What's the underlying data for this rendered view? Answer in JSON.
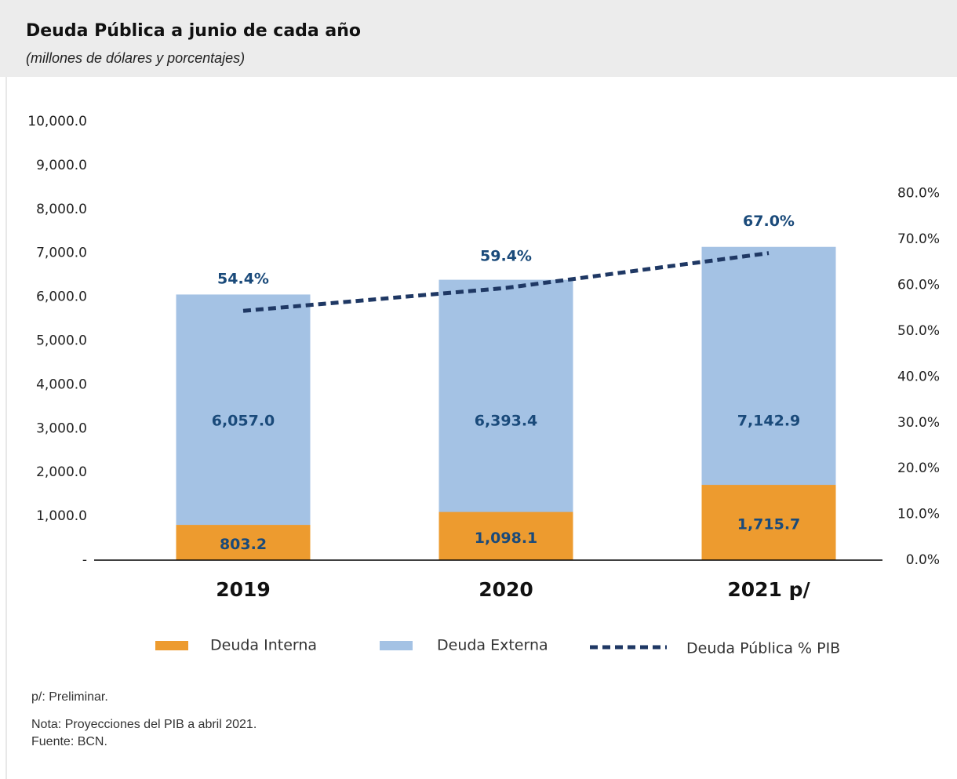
{
  "chart_data": {
    "type": "bar",
    "title": "Deuda Pública a junio de cada año",
    "subtitle": "(millones de dólares y porcentajes)",
    "categories": [
      "2019",
      "2020",
      "2021 p/"
    ],
    "series": [
      {
        "name": "Deuda Interna",
        "type": "bar",
        "color": "#ed9b2f",
        "values": [
          803.2,
          1098.1,
          1715.7
        ],
        "value_labels": [
          "803.2",
          "1,098.1",
          "1,715.7"
        ]
      },
      {
        "name": "Deuda Externa",
        "type": "bar",
        "color": "#a4c2e4",
        "values": [
          6057.0,
          6393.4,
          7142.9
        ],
        "value_labels": [
          "6,057.0",
          "6,393.4",
          "7,142.9"
        ]
      },
      {
        "name": "Deuda Pública % PIB",
        "type": "line",
        "axis": "y2",
        "color": "#1f3864",
        "values": [
          54.4,
          59.4,
          67.0
        ],
        "value_labels": [
          "54.4%",
          "59.4%",
          "67.0%"
        ]
      }
    ],
    "ylim": [
      0,
      10000
    ],
    "yticks": [
      {
        "value": 0,
        "label": "-"
      },
      {
        "value": 1000,
        "label": "1,000.0"
      },
      {
        "value": 2000,
        "label": "2,000.0"
      },
      {
        "value": 3000,
        "label": "3,000.0"
      },
      {
        "value": 4000,
        "label": "4,000.0"
      },
      {
        "value": 5000,
        "label": "5,000.0"
      },
      {
        "value": 6000,
        "label": "6,000.0"
      },
      {
        "value": 7000,
        "label": "7,000.0"
      },
      {
        "value": 8000,
        "label": "8,000.0"
      },
      {
        "value": 9000,
        "label": "9,000.0"
      },
      {
        "value": 10000,
        "label": "10,000.0"
      }
    ],
    "y2lim": [
      0,
      95.7
    ],
    "y2ticks": [
      {
        "value": 0,
        "label": "0.0%"
      },
      {
        "value": 10,
        "label": "10.0%"
      },
      {
        "value": 20,
        "label": "20.0%"
      },
      {
        "value": 30,
        "label": "30.0%"
      },
      {
        "value": 40,
        "label": "40.0%"
      },
      {
        "value": 50,
        "label": "50.0%"
      },
      {
        "value": 60,
        "label": "60.0%"
      },
      {
        "value": 70,
        "label": "70.0%"
      },
      {
        "value": 80,
        "label": "80.0%"
      }
    ],
    "grid": false,
    "legend": "bottom",
    "notes": [
      "p/: Preliminar.",
      "Nota: Proyecciones del PIB a abril 2021.",
      "Fuente: BCN."
    ]
  }
}
